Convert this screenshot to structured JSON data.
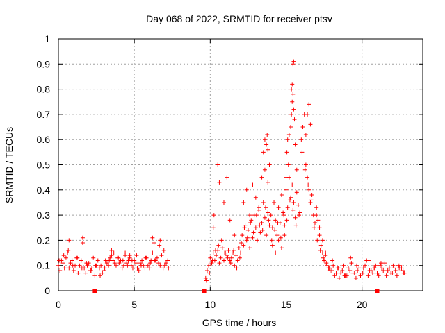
{
  "chart_data": {
    "type": "scatter",
    "title": "Day 068 of 2022, SRMTID for receiver ptsv",
    "xlabel": "GPS time / hours",
    "ylabel": "SRMTID / TECUs",
    "xlim": [
      0,
      24
    ],
    "ylim": [
      0,
      1
    ],
    "xticks": [
      0,
      5,
      10,
      15,
      20
    ],
    "yticks": [
      0,
      0.1,
      0.2,
      0.3,
      0.4,
      0.5,
      0.6,
      0.7,
      0.8,
      0.9,
      1
    ],
    "grid": true,
    "marker": "+",
    "series_color": "#ff0000",
    "series": [
      {
        "name": "SRMTID",
        "x": [
          0.0,
          0.2,
          0.4,
          0.6,
          0.8,
          1.0,
          1.2,
          1.4,
          1.6,
          1.8,
          2.0,
          2.2,
          2.4,
          2.6,
          2.8,
          3.0,
          3.2,
          3.4,
          3.6,
          3.8,
          4.0,
          4.2,
          4.4,
          4.6,
          4.8,
          5.0,
          5.2,
          5.4,
          5.6,
          5.8,
          6.0,
          6.2,
          6.4,
          6.6,
          6.8,
          7.0,
          7.2,
          0.1,
          0.3,
          0.5,
          0.7,
          0.9,
          1.1,
          1.3,
          1.5,
          1.7,
          1.9,
          2.1,
          2.3,
          2.5,
          2.7,
          2.9,
          3.1,
          3.3,
          3.5,
          3.7,
          3.9,
          4.1,
          4.3,
          4.5,
          4.7,
          4.9,
          5.1,
          5.3,
          5.5,
          5.7,
          5.9,
          6.1,
          6.3,
          6.5,
          6.7,
          6.9,
          7.1,
          0.05,
          0.35,
          0.65,
          0.95,
          1.25,
          1.55,
          1.85,
          2.15,
          2.45,
          2.75,
          3.05,
          3.35,
          3.65,
          3.95,
          4.25,
          4.55,
          4.85,
          5.15,
          5.45,
          5.75,
          6.05,
          6.35,
          6.65,
          6.95,
          7.25,
          0.7,
          1.6,
          3.5,
          4.4,
          4.7,
          6.2,
          6.7,
          9.7,
          9.8,
          9.9,
          10.0,
          10.1,
          10.2,
          10.3,
          10.4,
          10.5,
          10.6,
          10.7,
          10.8,
          10.9,
          11.0,
          11.1,
          11.2,
          11.3,
          11.4,
          11.5,
          11.6,
          11.7,
          11.8,
          11.9,
          9.75,
          9.95,
          10.15,
          10.35,
          10.55,
          10.75,
          10.95,
          11.15,
          11.35,
          11.55,
          11.75,
          11.95,
          10.2,
          10.25,
          10.5,
          10.6,
          11.1,
          10.9,
          11.3,
          11.6,
          12.0,
          12.1,
          12.2,
          12.3,
          12.4,
          12.5,
          12.6,
          12.7,
          12.8,
          12.9,
          13.0,
          13.1,
          13.2,
          13.3,
          13.4,
          13.5,
          13.6,
          13.7,
          13.8,
          13.9,
          12.05,
          12.25,
          12.45,
          12.65,
          12.85,
          13.05,
          13.25,
          13.45,
          13.65,
          13.85,
          12.2,
          12.4,
          12.6,
          12.8,
          13.0,
          13.2,
          13.4,
          13.6,
          13.8,
          13.5,
          13.6,
          13.7,
          13.75,
          13.8,
          13.9,
          14.0,
          14.1,
          14.2,
          14.3,
          14.4,
          14.5,
          14.6,
          14.7,
          14.8,
          14.9,
          15.0,
          15.1,
          15.2,
          15.3,
          15.4,
          15.5,
          15.6,
          15.7,
          15.8,
          15.9,
          14.05,
          14.25,
          14.45,
          14.65,
          14.85,
          15.05,
          15.25,
          15.45,
          15.65,
          15.85,
          14.1,
          14.3,
          14.5,
          14.7,
          14.9,
          15.0,
          15.05,
          15.1,
          15.15,
          15.2,
          15.3,
          15.35,
          15.4,
          15.45,
          15.5,
          15.55,
          15.6,
          15.7,
          15.35,
          15.4,
          15.45,
          15.5,
          16.0,
          16.1,
          16.2,
          16.3,
          16.4,
          16.5,
          16.6,
          16.7,
          16.8,
          16.9,
          17.0,
          17.1,
          17.2,
          17.3,
          17.4,
          17.5,
          17.6,
          17.7,
          17.8,
          17.9,
          16.05,
          16.25,
          16.45,
          16.65,
          16.85,
          17.05,
          17.25,
          17.45,
          17.65,
          17.85,
          16.3,
          16.4,
          16.5,
          16.6,
          17.0,
          17.2,
          17.4,
          17.6,
          18.0,
          18.2,
          18.4,
          18.6,
          18.8,
          19.0,
          19.2,
          19.4,
          19.6,
          19.8,
          20.0,
          20.2,
          20.4,
          20.6,
          20.8,
          21.0,
          21.2,
          21.4,
          21.6,
          21.8,
          22.0,
          22.2,
          22.4,
          22.6,
          22.8,
          18.1,
          18.3,
          18.5,
          18.7,
          18.9,
          19.1,
          19.3,
          19.5,
          19.7,
          19.9,
          20.1,
          20.3,
          20.5,
          20.7,
          20.9,
          21.1,
          21.3,
          21.5,
          21.7,
          21.9,
          22.1,
          22.3,
          22.5,
          22.7,
          18.05,
          18.45,
          18.85,
          19.25,
          19.65,
          20.05,
          20.45,
          20.85,
          21.25,
          21.65,
          22.05,
          22.45,
          22.75
        ],
        "y": [
          0.1,
          0.12,
          0.09,
          0.15,
          0.11,
          0.08,
          0.13,
          0.1,
          0.19,
          0.07,
          0.11,
          0.09,
          0.06,
          0.12,
          0.1,
          0.08,
          0.11,
          0.13,
          0.12,
          0.1,
          0.11,
          0.09,
          0.14,
          0.12,
          0.1,
          0.12,
          0.09,
          0.11,
          0.1,
          0.13,
          0.09,
          0.15,
          0.12,
          0.11,
          0.14,
          0.1,
          0.12,
          0.08,
          0.11,
          0.13,
          0.09,
          0.12,
          0.1,
          0.07,
          0.12,
          0.09,
          0.1,
          0.08,
          0.13,
          0.1,
          0.09,
          0.07,
          0.12,
          0.1,
          0.14,
          0.11,
          0.13,
          0.12,
          0.1,
          0.11,
          0.13,
          0.09,
          0.11,
          0.08,
          0.12,
          0.09,
          0.1,
          0.12,
          0.19,
          0.13,
          0.1,
          0.09,
          0.11,
          0.12,
          0.14,
          0.16,
          0.1,
          0.13,
          0.09,
          0.11,
          0.08,
          0.1,
          0.06,
          0.09,
          0.12,
          0.15,
          0.13,
          0.12,
          0.1,
          0.12,
          0.14,
          0.1,
          0.13,
          0.11,
          0.12,
          0.18,
          0.16,
          0.09,
          0.2,
          0.21,
          0.16,
          0.15,
          0.14,
          0.21,
          0.2,
          0.05,
          0.08,
          0.1,
          0.13,
          0.11,
          0.15,
          0.12,
          0.14,
          0.16,
          0.11,
          0.13,
          0.17,
          0.12,
          0.15,
          0.14,
          0.16,
          0.12,
          0.13,
          0.15,
          0.1,
          0.14,
          0.12,
          0.17,
          0.04,
          0.07,
          0.12,
          0.16,
          0.18,
          0.2,
          0.15,
          0.13,
          0.11,
          0.16,
          0.09,
          0.13,
          0.25,
          0.3,
          0.5,
          0.43,
          0.45,
          0.35,
          0.28,
          0.22,
          0.15,
          0.22,
          0.18,
          0.26,
          0.2,
          0.24,
          0.17,
          0.28,
          0.21,
          0.3,
          0.25,
          0.2,
          0.32,
          0.23,
          0.27,
          0.35,
          0.29,
          0.22,
          0.31,
          0.26,
          0.19,
          0.25,
          0.21,
          0.27,
          0.23,
          0.3,
          0.26,
          0.24,
          0.33,
          0.28,
          0.35,
          0.4,
          0.3,
          0.42,
          0.37,
          0.33,
          0.45,
          0.48,
          0.43,
          0.55,
          0.6,
          0.58,
          0.62,
          0.56,
          0.5,
          0.3,
          0.25,
          0.35,
          0.28,
          0.22,
          0.33,
          0.27,
          0.38,
          0.31,
          0.26,
          0.4,
          0.33,
          0.45,
          0.37,
          0.42,
          0.35,
          0.29,
          0.39,
          0.34,
          0.31,
          0.2,
          0.24,
          0.27,
          0.21,
          0.3,
          0.28,
          0.36,
          0.32,
          0.26,
          0.3,
          0.18,
          0.15,
          0.2,
          0.17,
          0.22,
          0.45,
          0.55,
          0.6,
          0.5,
          0.62,
          0.65,
          0.7,
          0.75,
          0.78,
          0.72,
          0.68,
          0.58,
          0.48,
          0.8,
          0.82,
          0.9,
          0.91,
          0.6,
          0.65,
          0.7,
          0.5,
          0.45,
          0.4,
          0.35,
          0.38,
          0.3,
          0.27,
          0.33,
          0.28,
          0.22,
          0.18,
          0.15,
          0.12,
          0.14,
          0.1,
          0.09,
          0.08,
          0.55,
          0.48,
          0.42,
          0.36,
          0.25,
          0.2,
          0.16,
          0.13,
          0.11,
          0.09,
          0.62,
          0.7,
          0.74,
          0.66,
          0.3,
          0.25,
          0.2,
          0.15,
          0.08,
          0.06,
          0.09,
          0.07,
          0.1,
          0.06,
          0.08,
          0.07,
          0.05,
          0.09,
          0.07,
          0.1,
          0.06,
          0.08,
          0.09,
          0.07,
          0.1,
          0.08,
          0.06,
          0.09,
          0.07,
          0.08,
          0.1,
          0.09,
          0.07,
          0.1,
          0.07,
          0.05,
          0.08,
          0.06,
          0.09,
          0.11,
          0.07,
          0.08,
          0.06,
          0.09,
          0.12,
          0.08,
          0.07,
          0.1,
          0.06,
          0.09,
          0.11,
          0.08,
          0.07,
          0.09,
          0.06,
          0.1,
          0.08,
          0.12,
          0.09,
          0.06,
          0.13,
          0.1,
          0.07,
          0.12,
          0.09,
          0.11,
          0.08,
          0.1,
          0.09,
          0.07
        ]
      }
    ],
    "gap_markers_x": [
      2.4,
      9.6,
      21.0
    ]
  }
}
